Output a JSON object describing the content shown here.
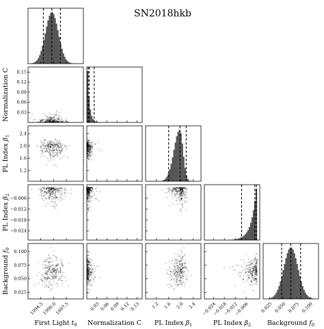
{
  "chart_data": {
    "type": "corner",
    "title": "SN2018hkb",
    "parameters": [
      {
        "key": "t0",
        "label": "First Light",
        "symbol": "t",
        "sub": "0",
        "range": [
          1993.0,
          1999.5
        ],
        "ticks": [
          "1994.5",
          "1996.0",
          "1997.5"
        ],
        "tick_values": [
          1994.5,
          1996.0,
          1997.5
        ],
        "quantiles": [
          1994.8,
          1995.8,
          1996.8
        ],
        "marginal": {
          "type": "gaussian",
          "mean": 1995.8,
          "sd": 0.75
        }
      },
      {
        "key": "C",
        "label": "Normalization C",
        "symbol": "",
        "sub": "",
        "range": [
          0.0,
          0.165
        ],
        "ticks": [
          "0.03",
          "0.06",
          "0.09",
          "0.12",
          "0.15"
        ],
        "tick_values": [
          0.03,
          0.06,
          0.09,
          0.12,
          0.15
        ],
        "quantiles": [
          0.004,
          0.007,
          0.022
        ],
        "marginal": {
          "type": "exponential",
          "scale": 0.006
        }
      },
      {
        "key": "beta1",
        "label": "PL Index",
        "symbol": "β",
        "sub": "1",
        "range": [
          0.85,
          2.65
        ],
        "ticks": [
          "1.2",
          "1.6",
          "2.0",
          "2.4"
        ],
        "tick_values": [
          1.2,
          1.6,
          2.0,
          2.4
        ],
        "quantiles": [
          1.6,
          1.97,
          2.17
        ],
        "marginal": {
          "type": "skewed",
          "mean": 1.96,
          "sd": 0.14
        }
      },
      {
        "key": "beta2",
        "label": "PL Index",
        "symbol": "β",
        "sub": "2",
        "range": [
          -0.029,
          0.0015
        ],
        "ticks": [
          "−0.024",
          "−0.018",
          "−0.012",
          "−0.006"
        ],
        "tick_values": [
          -0.024,
          -0.018,
          -0.012,
          -0.006
        ],
        "quantiles": [
          -0.0085,
          -0.0012,
          -0.0003
        ],
        "marginal": {
          "type": "rising",
          "peak": 0.0,
          "scale": 0.0028
        }
      },
      {
        "key": "f0",
        "label": "Background",
        "symbol": "f",
        "sub": "0",
        "range": [
          0.013,
          0.115
        ],
        "ticks": [
          "0.025",
          "0.050",
          "0.075",
          "0.100"
        ],
        "tick_values": [
          0.025,
          0.05,
          0.075,
          0.1
        ],
        "quantiles": [
          0.047,
          0.064,
          0.082
        ],
        "marginal": {
          "type": "gaussian",
          "mean": 0.064,
          "sd": 0.013
        }
      }
    ],
    "hist_color": "#555555",
    "scatter_color": "#000000"
  }
}
